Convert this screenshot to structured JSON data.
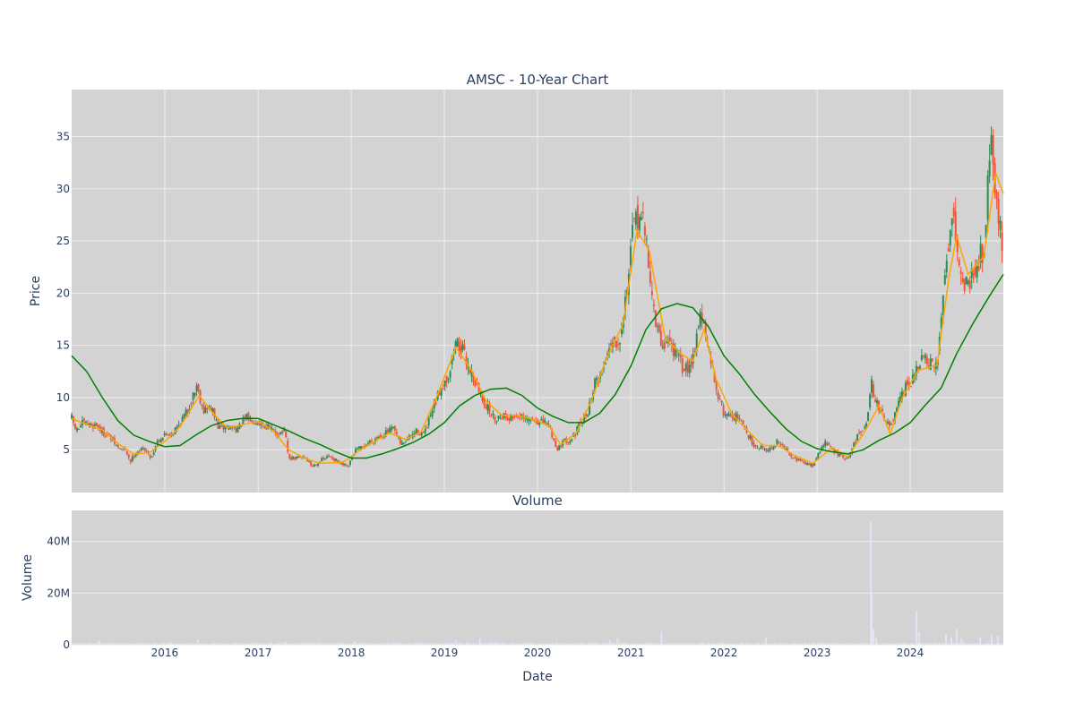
{
  "colors": {
    "plot_bg": "#d3d3d3",
    "grid": "#eeeeee",
    "increasing": "#2e8b57",
    "decreasing": "#ef553b",
    "ma_short": "#ffa500",
    "ma_long": "#008000",
    "volume": "#e6e6fa",
    "text": "#2a3f5f"
  },
  "chart_data": [
    {
      "type": "candlestick",
      "title": "AMSC - 10-Year Chart",
      "ylabel": "Price",
      "x_range": [
        "2015-01-01",
        "2024-12-31"
      ],
      "ylim": [
        0.9,
        39.5
      ],
      "y_ticks": [
        5,
        10,
        15,
        20,
        25,
        30,
        35
      ],
      "grid": true,
      "close_path": [
        [
          "2015-01-01",
          8.0
        ],
        [
          "2015-01-20",
          6.8
        ],
        [
          "2015-02-15",
          7.6
        ],
        [
          "2015-03-15",
          7.3
        ],
        [
          "2015-04-10",
          7.4
        ],
        [
          "2015-05-01",
          6.7
        ],
        [
          "2015-06-01",
          6.2
        ],
        [
          "2015-07-01",
          5.2
        ],
        [
          "2015-08-01",
          4.9
        ],
        [
          "2015-08-20",
          3.9
        ],
        [
          "2015-09-10",
          4.8
        ],
        [
          "2015-10-15",
          5.1
        ],
        [
          "2015-11-10",
          4.2
        ],
        [
          "2015-12-01",
          5.8
        ],
        [
          "2016-01-01",
          6.4
        ],
        [
          "2016-02-01",
          6.6
        ],
        [
          "2016-03-01",
          7.6
        ],
        [
          "2016-04-01",
          8.8
        ],
        [
          "2016-05-05",
          11.2
        ],
        [
          "2016-06-01",
          8.8
        ],
        [
          "2016-07-01",
          9.0
        ],
        [
          "2016-08-01",
          7.0
        ],
        [
          "2016-09-01",
          7.2
        ],
        [
          "2016-10-15",
          7.0
        ],
        [
          "2016-11-15",
          8.1
        ],
        [
          "2017-01-01",
          7.7
        ],
        [
          "2017-02-15",
          7.1
        ],
        [
          "2017-03-15",
          6.5
        ],
        [
          "2017-04-15",
          6.8
        ],
        [
          "2017-05-01",
          4.1
        ],
        [
          "2017-06-01",
          4.2
        ],
        [
          "2017-07-01",
          4.4
        ],
        [
          "2017-08-01",
          3.4
        ],
        [
          "2017-09-01",
          3.9
        ],
        [
          "2017-10-10",
          4.4
        ],
        [
          "2017-11-15",
          3.7
        ],
        [
          "2017-12-20",
          3.3
        ],
        [
          "2018-01-15",
          4.9
        ],
        [
          "2018-02-15",
          5.2
        ],
        [
          "2018-03-15",
          5.8
        ],
        [
          "2018-04-15",
          6.2
        ],
        [
          "2018-05-15",
          6.6
        ],
        [
          "2018-06-15",
          7.0
        ],
        [
          "2018-07-15",
          5.5
        ],
        [
          "2018-08-15",
          6.1
        ],
        [
          "2018-09-15",
          6.8
        ],
        [
          "2018-10-15",
          6.5
        ],
        [
          "2018-11-20",
          9.0
        ],
        [
          "2018-12-20",
          11.0
        ],
        [
          "2019-01-20",
          12.3
        ],
        [
          "2019-02-15",
          15.5
        ],
        [
          "2019-03-15",
          14.4
        ],
        [
          "2019-04-15",
          12.5
        ],
        [
          "2019-05-15",
          10.6
        ],
        [
          "2019-06-15",
          9.2
        ],
        [
          "2019-07-15",
          8.0
        ],
        [
          "2019-08-15",
          8.3
        ],
        [
          "2019-09-15",
          8.1
        ],
        [
          "2019-10-15",
          8.3
        ],
        [
          "2019-11-15",
          7.8
        ],
        [
          "2019-12-15",
          7.9
        ],
        [
          "2020-01-15",
          7.6
        ],
        [
          "2020-02-15",
          7.4
        ],
        [
          "2020-03-15",
          5.1
        ],
        [
          "2020-04-15",
          5.8
        ],
        [
          "2020-05-15",
          6.1
        ],
        [
          "2020-06-15",
          7.3
        ],
        [
          "2020-07-15",
          8.6
        ],
        [
          "2020-08-15",
          11.5
        ],
        [
          "2020-09-15",
          12.7
        ],
        [
          "2020-10-15",
          15.6
        ],
        [
          "2020-11-15",
          15.4
        ],
        [
          "2020-12-15",
          20.0
        ],
        [
          "2021-01-10",
          26.0
        ],
        [
          "2021-02-05",
          28.0
        ],
        [
          "2021-03-05",
          24.5
        ],
        [
          "2021-04-05",
          17.4
        ],
        [
          "2021-05-01",
          15.0
        ],
        [
          "2021-06-01",
          15.4
        ],
        [
          "2021-07-01",
          14.0
        ],
        [
          "2021-08-01",
          12.5
        ],
        [
          "2021-09-01",
          13.8
        ],
        [
          "2021-10-01",
          18.3
        ],
        [
          "2021-11-01",
          14.5
        ],
        [
          "2021-12-01",
          11.0
        ],
        [
          "2022-01-01",
          8.5
        ],
        [
          "2022-02-01",
          8.3
        ],
        [
          "2022-03-01",
          8.0
        ],
        [
          "2022-04-01",
          6.6
        ],
        [
          "2022-05-01",
          5.4
        ],
        [
          "2022-06-01",
          5.2
        ],
        [
          "2022-07-01",
          5.0
        ],
        [
          "2022-08-01",
          5.8
        ],
        [
          "2022-09-01",
          5.0
        ],
        [
          "2022-10-01",
          4.3
        ],
        [
          "2022-11-01",
          3.8
        ],
        [
          "2022-12-15",
          3.5
        ],
        [
          "2023-02-01",
          5.8
        ],
        [
          "2023-03-01",
          5.0
        ],
        [
          "2023-04-01",
          4.5
        ],
        [
          "2023-05-01",
          4.0
        ],
        [
          "2023-06-01",
          5.9
        ],
        [
          "2023-07-15",
          7.8
        ],
        [
          "2023-08-01",
          11.5
        ],
        [
          "2023-08-20",
          9.5
        ],
        [
          "2023-09-15",
          8.5
        ],
        [
          "2023-10-15",
          7.0
        ],
        [
          "2023-11-15",
          9.2
        ],
        [
          "2023-12-15",
          11.0
        ],
        [
          "2024-01-15",
          11.8
        ],
        [
          "2024-02-15",
          13.8
        ],
        [
          "2024-03-15",
          13.2
        ],
        [
          "2024-04-15",
          12.7
        ],
        [
          "2024-05-10",
          20.5
        ],
        [
          "2024-06-01",
          25.5
        ],
        [
          "2024-06-20",
          28.0
        ],
        [
          "2024-07-15",
          21.5
        ],
        [
          "2024-08-15",
          20.8
        ],
        [
          "2024-09-15",
          23.0
        ],
        [
          "2024-10-15",
          24.0
        ],
        [
          "2024-11-10",
          35.0
        ],
        [
          "2024-11-25",
          32.0
        ],
        [
          "2024-12-10",
          27.0
        ],
        [
          "2024-12-31",
          24.5
        ]
      ],
      "moving_average_short": [
        [
          "2015-01-01",
          8.0
        ],
        [
          "2015-03-01",
          7.4
        ],
        [
          "2015-05-01",
          6.9
        ],
        [
          "2015-07-01",
          5.6
        ],
        [
          "2015-09-01",
          4.6
        ],
        [
          "2015-11-01",
          4.7
        ],
        [
          "2016-01-01",
          5.8
        ],
        [
          "2016-03-01",
          7.2
        ],
        [
          "2016-05-15",
          10.2
        ],
        [
          "2016-07-01",
          8.7
        ],
        [
          "2016-09-01",
          7.1
        ],
        [
          "2016-11-01",
          7.4
        ],
        [
          "2017-01-01",
          7.7
        ],
        [
          "2017-03-01",
          6.8
        ],
        [
          "2017-05-01",
          5.0
        ],
        [
          "2017-07-01",
          4.2
        ],
        [
          "2017-09-01",
          3.7
        ],
        [
          "2017-12-01",
          3.8
        ],
        [
          "2018-02-01",
          4.9
        ],
        [
          "2018-04-01",
          5.8
        ],
        [
          "2018-06-01",
          6.6
        ],
        [
          "2018-08-01",
          6.0
        ],
        [
          "2018-10-01",
          6.7
        ],
        [
          "2018-12-01",
          10.0
        ],
        [
          "2019-02-15",
          14.8
        ],
        [
          "2019-04-15",
          12.7
        ],
        [
          "2019-06-15",
          9.6
        ],
        [
          "2019-08-15",
          8.3
        ],
        [
          "2019-10-15",
          8.3
        ],
        [
          "2019-12-15",
          7.9
        ],
        [
          "2020-02-15",
          7.3
        ],
        [
          "2020-04-01",
          5.5
        ],
        [
          "2020-06-01",
          6.6
        ],
        [
          "2020-08-01",
          9.8
        ],
        [
          "2020-10-01",
          14.0
        ],
        [
          "2020-12-01",
          17.0
        ],
        [
          "2021-01-25",
          26.0
        ],
        [
          "2021-03-15",
          24.0
        ],
        [
          "2021-05-15",
          15.7
        ],
        [
          "2021-07-15",
          14.2
        ],
        [
          "2021-09-01",
          13.5
        ],
        [
          "2021-10-15",
          16.5
        ],
        [
          "2021-12-01",
          11.8
        ],
        [
          "2022-02-01",
          8.4
        ],
        [
          "2022-04-01",
          6.9
        ],
        [
          "2022-06-01",
          5.4
        ],
        [
          "2022-08-01",
          5.4
        ],
        [
          "2022-10-01",
          4.5
        ],
        [
          "2022-12-15",
          3.7
        ],
        [
          "2023-03-01",
          5.2
        ],
        [
          "2023-05-01",
          4.3
        ],
        [
          "2023-07-01",
          6.5
        ],
        [
          "2023-09-01",
          9.2
        ],
        [
          "2023-10-15",
          6.5
        ],
        [
          "2023-12-01",
          10.0
        ],
        [
          "2024-02-01",
          12.6
        ],
        [
          "2024-04-15",
          13.1
        ],
        [
          "2024-06-01",
          21.5
        ],
        [
          "2024-07-01",
          25.5
        ],
        [
          "2024-08-15",
          21.8
        ],
        [
          "2024-10-15",
          23.5
        ],
        [
          "2024-12-01",
          31.5
        ],
        [
          "2024-12-31",
          29.5
        ]
      ],
      "moving_average_long": [
        [
          "2015-01-01",
          14.0
        ],
        [
          "2015-03-01",
          12.5
        ],
        [
          "2015-05-01",
          10.0
        ],
        [
          "2015-07-01",
          7.8
        ],
        [
          "2015-09-01",
          6.4
        ],
        [
          "2015-11-01",
          5.8
        ],
        [
          "2016-01-01",
          5.3
        ],
        [
          "2016-03-01",
          5.4
        ],
        [
          "2016-05-01",
          6.4
        ],
        [
          "2016-07-01",
          7.3
        ],
        [
          "2016-09-01",
          7.8
        ],
        [
          "2016-11-01",
          8.0
        ],
        [
          "2017-01-01",
          8.0
        ],
        [
          "2017-03-01",
          7.4
        ],
        [
          "2017-05-01",
          6.8
        ],
        [
          "2017-07-01",
          6.1
        ],
        [
          "2017-09-01",
          5.5
        ],
        [
          "2017-11-01",
          4.8
        ],
        [
          "2018-01-01",
          4.2
        ],
        [
          "2018-03-01",
          4.2
        ],
        [
          "2018-05-01",
          4.6
        ],
        [
          "2018-07-01",
          5.1
        ],
        [
          "2018-09-01",
          5.7
        ],
        [
          "2018-11-01",
          6.5
        ],
        [
          "2019-01-01",
          7.6
        ],
        [
          "2019-03-01",
          9.2
        ],
        [
          "2019-05-01",
          10.2
        ],
        [
          "2019-07-01",
          10.8
        ],
        [
          "2019-09-01",
          10.9
        ],
        [
          "2019-11-01",
          10.2
        ],
        [
          "2020-01-01",
          9.0
        ],
        [
          "2020-03-01",
          8.2
        ],
        [
          "2020-05-01",
          7.6
        ],
        [
          "2020-07-01",
          7.6
        ],
        [
          "2020-09-01",
          8.5
        ],
        [
          "2020-11-01",
          10.3
        ],
        [
          "2021-01-01",
          13.0
        ],
        [
          "2021-03-01",
          16.5
        ],
        [
          "2021-05-01",
          18.5
        ],
        [
          "2021-07-01",
          19.0
        ],
        [
          "2021-09-01",
          18.6
        ],
        [
          "2021-11-01",
          16.8
        ],
        [
          "2022-01-01",
          14.0
        ],
        [
          "2022-03-01",
          12.3
        ],
        [
          "2022-05-01",
          10.3
        ],
        [
          "2022-07-01",
          8.6
        ],
        [
          "2022-09-01",
          7.0
        ],
        [
          "2022-11-01",
          5.8
        ],
        [
          "2023-01-01",
          5.1
        ],
        [
          "2023-03-01",
          4.8
        ],
        [
          "2023-05-01",
          4.6
        ],
        [
          "2023-07-01",
          5.0
        ],
        [
          "2023-09-01",
          5.9
        ],
        [
          "2023-11-01",
          6.6
        ],
        [
          "2024-01-01",
          7.6
        ],
        [
          "2024-03-01",
          9.3
        ],
        [
          "2024-05-01",
          10.9
        ],
        [
          "2024-07-01",
          14.2
        ],
        [
          "2024-09-01",
          17.0
        ],
        [
          "2024-11-01",
          19.5
        ],
        [
          "2024-12-31",
          21.8
        ]
      ]
    },
    {
      "type": "bar",
      "title": "Volume",
      "xlabel": "Date",
      "ylabel": "Volume",
      "x_range": [
        "2015-01-01",
        "2024-12-31"
      ],
      "ylim": [
        0,
        52000000
      ],
      "y_ticks": [
        {
          "value": 0,
          "label": "0"
        },
        {
          "value": 20000000,
          "label": "20M"
        },
        {
          "value": 40000000,
          "label": "40M"
        }
      ],
      "x_ticks": [
        {
          "date": "2016-01-01",
          "label": "2016"
        },
        {
          "date": "2017-01-01",
          "label": "2017"
        },
        {
          "date": "2018-01-01",
          "label": "2018"
        },
        {
          "date": "2019-01-01",
          "label": "2019"
        },
        {
          "date": "2020-01-01",
          "label": "2020"
        },
        {
          "date": "2021-01-01",
          "label": "2021"
        },
        {
          "date": "2022-01-01",
          "label": "2022"
        },
        {
          "date": "2023-01-01",
          "label": "2023"
        },
        {
          "date": "2024-01-01",
          "label": "2024"
        }
      ],
      "grid": true,
      "spikes": [
        [
          "2015-04-20",
          1500000
        ],
        [
          "2016-05-10",
          1800000
        ],
        [
          "2017-04-20",
          1200000
        ],
        [
          "2018-01-15",
          1400000
        ],
        [
          "2019-02-15",
          1800000
        ],
        [
          "2019-05-20",
          2600000
        ],
        [
          "2020-10-10",
          1800000
        ],
        [
          "2020-11-10",
          2600000
        ],
        [
          "2021-05-01",
          5000000
        ],
        [
          "2022-06-15",
          3000000
        ],
        [
          "2023-07-31",
          48000000
        ],
        [
          "2023-08-03",
          20000000
        ],
        [
          "2023-08-10",
          6000000
        ],
        [
          "2023-08-20",
          3000000
        ],
        [
          "2024-01-25",
          13000000
        ],
        [
          "2024-02-05",
          5000000
        ],
        [
          "2024-05-20",
          4000000
        ],
        [
          "2024-06-10",
          3000000
        ],
        [
          "2024-07-01",
          6000000
        ],
        [
          "2024-07-20",
          2500000
        ],
        [
          "2024-10-01",
          3000000
        ],
        [
          "2024-11-15",
          4000000
        ],
        [
          "2024-12-10",
          3500000
        ]
      ]
    }
  ]
}
